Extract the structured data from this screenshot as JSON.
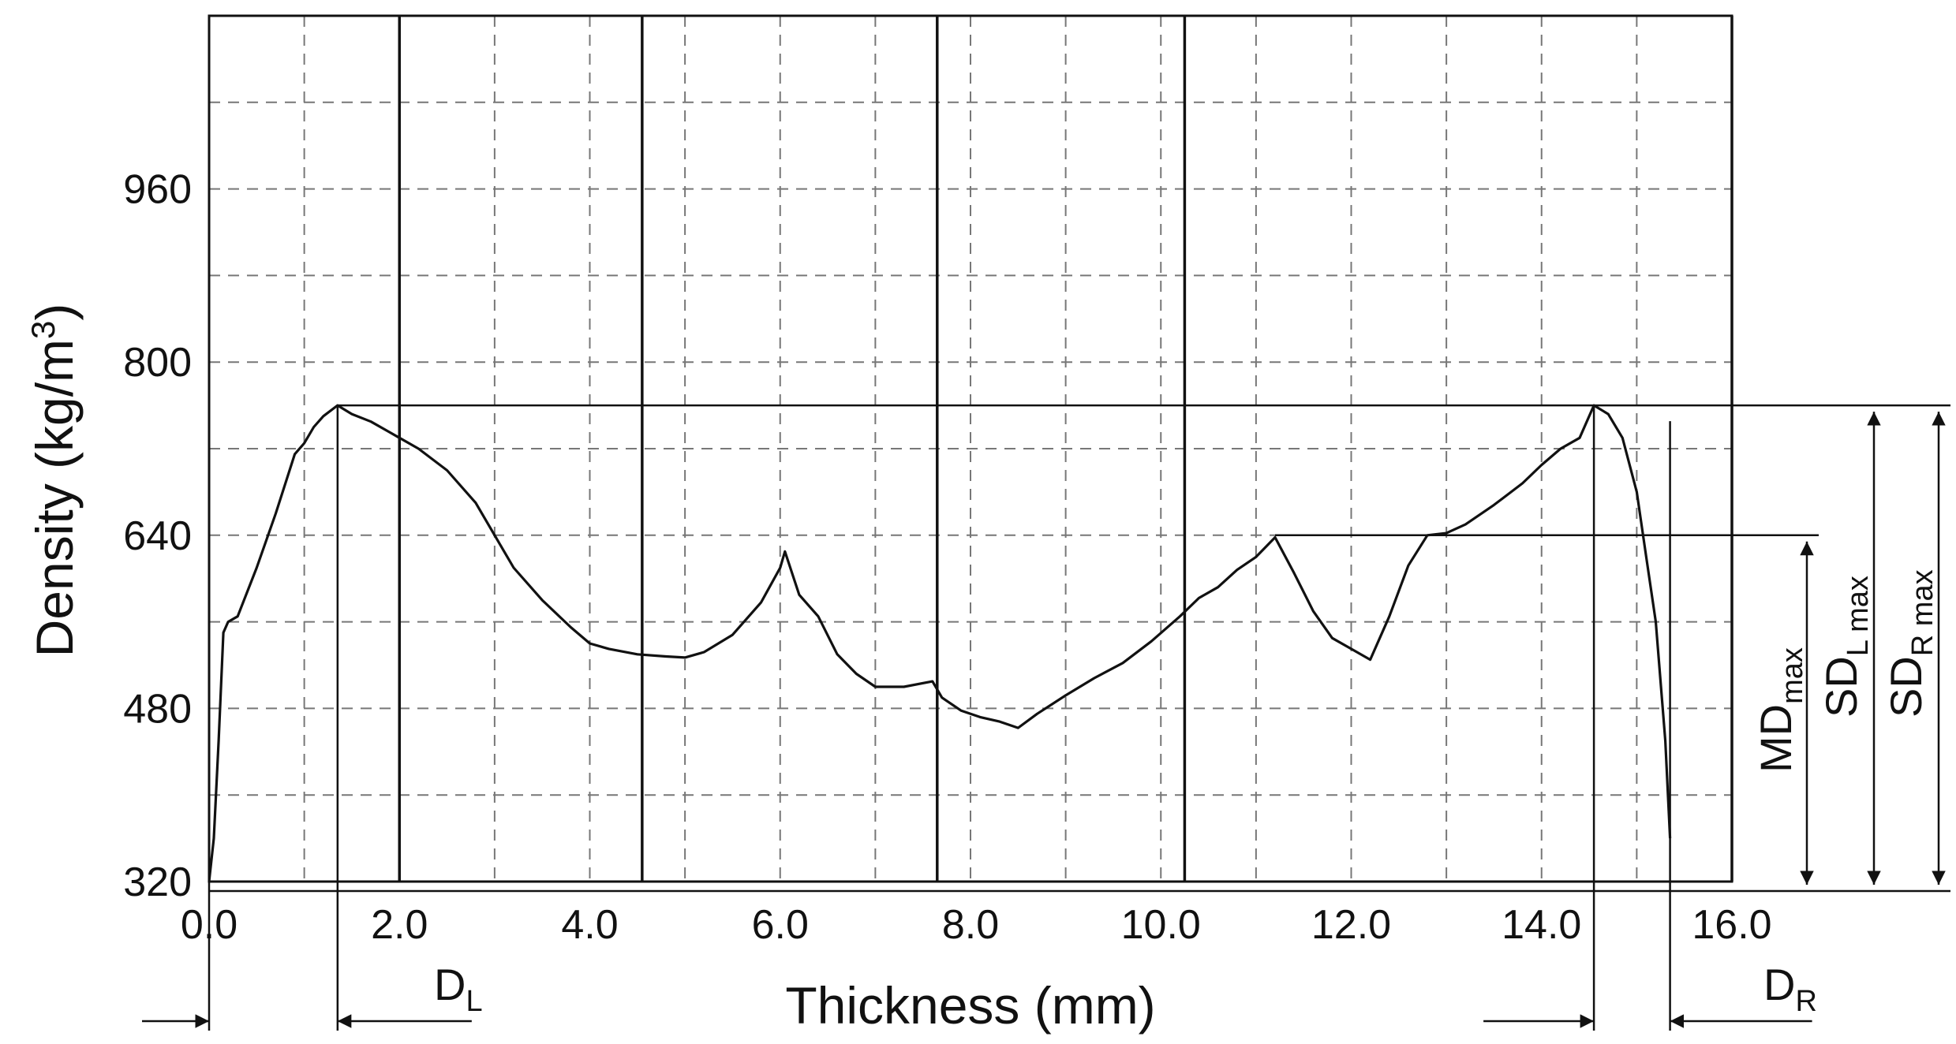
{
  "chart_data": {
    "type": "line",
    "xlabel": "Thickness (mm)",
    "ylabel": "Density (kg/m",
    "ylabel_sup": "3",
    "ylabel_close": ")",
    "xlim": [
      0.0,
      16.0
    ],
    "ylim": [
      320,
      1120
    ],
    "x_tick_labels": [
      "0.0",
      "2.0",
      "4.0",
      "6.0",
      "8.0",
      "10.0",
      "12.0",
      "14.0",
      "16.0"
    ],
    "x_tick_values": [
      0,
      2,
      4,
      6,
      8,
      10,
      12,
      14,
      16
    ],
    "y_tick_labels": [
      "320",
      "480",
      "640",
      "800",
      "960"
    ],
    "y_tick_values": [
      320,
      480,
      640,
      800,
      960
    ],
    "grid_x_step": 1,
    "grid_y_step": 80,
    "grid": "dashed",
    "vertical_lines_x": [
      2.0,
      4.55,
      7.65,
      10.25,
      16.0
    ],
    "series": [
      {
        "x": [
          0.0,
          0.05,
          0.1,
          0.15,
          0.2,
          0.3,
          0.5,
          0.7,
          0.9,
          1.0,
          1.1,
          1.2,
          1.35,
          1.5,
          1.7,
          1.9,
          2.0,
          2.2,
          2.5,
          2.8,
          3.0,
          3.2,
          3.5,
          3.8,
          4.0,
          4.2,
          4.5,
          4.8,
          5.0,
          5.2,
          5.5,
          5.8,
          6.0,
          6.05,
          6.2,
          6.4,
          6.6,
          6.8,
          7.0,
          7.3,
          7.6,
          7.7,
          7.9,
          8.1,
          8.3,
          8.5,
          8.7,
          9.0,
          9.3,
          9.6,
          9.9,
          10.2,
          10.4,
          10.6,
          10.8,
          11.0,
          11.2,
          11.4,
          11.6,
          11.8,
          12.0,
          12.2,
          12.4,
          12.6,
          12.8,
          13.0,
          13.2,
          13.5,
          13.8,
          14.0,
          14.2,
          14.4,
          14.55,
          14.7,
          14.85,
          15.0,
          15.1,
          15.2,
          15.3,
          15.35
        ],
        "values": [
          320,
          360,
          450,
          550,
          560,
          565,
          610,
          660,
          715,
          725,
          740,
          750,
          760,
          752,
          745,
          735,
          730,
          720,
          700,
          670,
          640,
          610,
          580,
          555,
          540,
          535,
          530,
          528,
          527,
          532,
          548,
          578,
          610,
          625,
          585,
          565,
          530,
          512,
          500,
          500,
          505,
          490,
          478,
          472,
          468,
          462,
          475,
          492,
          508,
          522,
          542,
          565,
          582,
          592,
          608,
          620,
          638,
          605,
          570,
          545,
          535,
          525,
          565,
          612,
          640,
          642,
          650,
          668,
          688,
          705,
          720,
          730,
          760,
          752,
          730,
          680,
          620,
          560,
          450,
          360
        ]
      }
    ],
    "annotations": {
      "dl_label": "D",
      "dl_sub": "L",
      "dr_label": "D",
      "dr_sub": "R",
      "md_label": "MD",
      "md_sub": "max",
      "sdl_label": "SD",
      "sdl_sub": "L max",
      "sdr_label": "SD",
      "sdr_sub": "R max",
      "dl_x": [
        0.0,
        1.35
      ],
      "dr_x": [
        14.55,
        15.35
      ],
      "peak_density": 760,
      "mid_peak_density": 640,
      "mid_peak_x": 11.2
    }
  }
}
